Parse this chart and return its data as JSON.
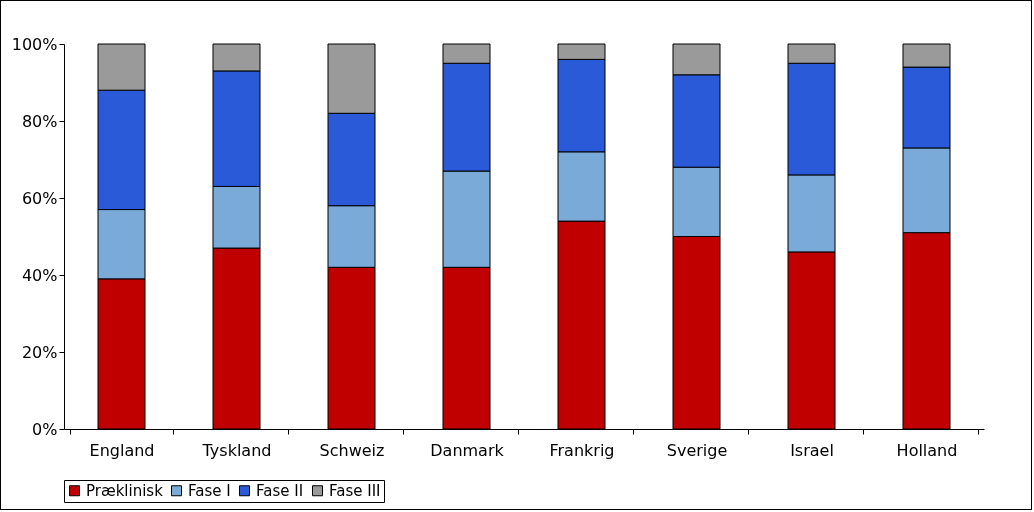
{
  "chart_data": {
    "type": "bar",
    "stacked": true,
    "categories": [
      "England",
      "Tyskland",
      "Schweiz",
      "Danmark",
      "Frankrig",
      "Sverige",
      "Israel",
      "Holland"
    ],
    "series": [
      {
        "name": "Præklinisk",
        "color": "#c00000",
        "values": [
          39,
          47,
          42,
          42,
          54,
          50,
          46,
          51
        ]
      },
      {
        "name": "Fase I",
        "color": "#7aaad8",
        "values": [
          18,
          16,
          16,
          25,
          18,
          18,
          20,
          22
        ]
      },
      {
        "name": "Fase II",
        "color": "#2a5ad8",
        "values": [
          31,
          30,
          24,
          28,
          24,
          24,
          29,
          21
        ]
      },
      {
        "name": "Fase III",
        "color": "#9a9a9a",
        "values": [
          12,
          7,
          18,
          5,
          4,
          8,
          5,
          6
        ]
      }
    ],
    "ylim": [
      0,
      100
    ],
    "yticks": [
      {
        "value": 0,
        "label": "0%"
      },
      {
        "value": 20,
        "label": "20%"
      },
      {
        "value": 40,
        "label": "40%"
      },
      {
        "value": 60,
        "label": "60%"
      },
      {
        "value": 80,
        "label": "80%"
      },
      {
        "value": 100,
        "label": "100%"
      }
    ],
    "grid": false,
    "legend": "bottom"
  }
}
